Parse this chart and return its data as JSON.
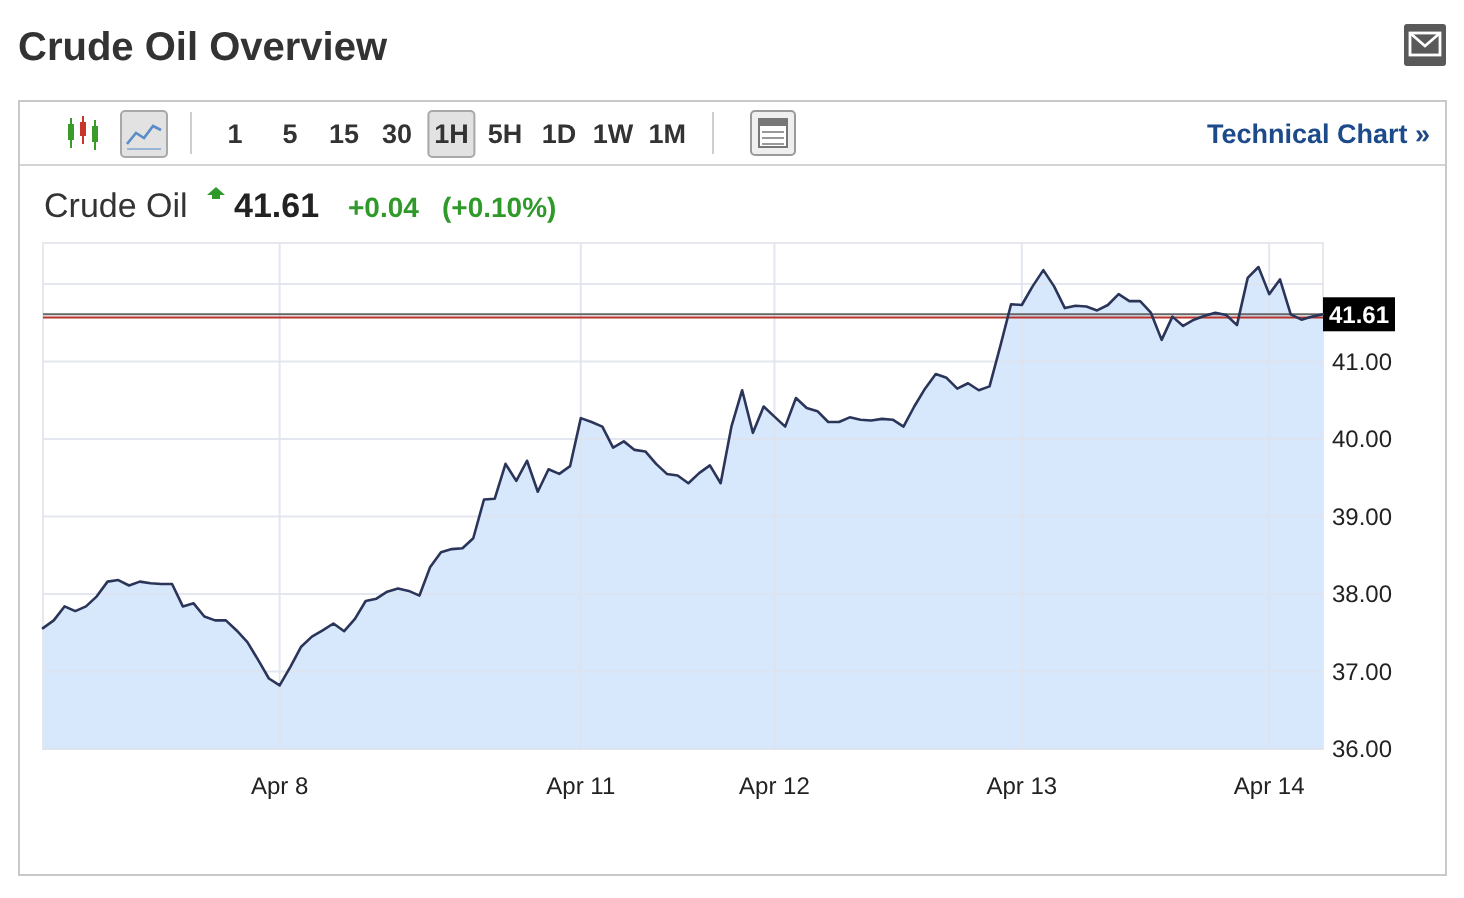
{
  "chart_data": {
    "type": "area",
    "title": "Crude Oil Overview",
    "subtitle": "Crude Oil",
    "annotations": [
      "41.61",
      "+0.04",
      "(+0.10%)",
      "1",
      "5",
      "15",
      "30",
      "1H",
      "5H",
      "1D",
      "1W",
      "1M",
      "Technical Chart »"
    ],
    "categories": [
      null,
      null,
      null,
      null,
      null,
      null,
      null,
      null,
      null,
      null,
      null,
      null,
      null,
      null,
      null,
      null,
      null,
      null,
      null,
      null,
      null,
      null,
      "Apr 8",
      null,
      null,
      null,
      null,
      null,
      null,
      null,
      null,
      null,
      null,
      null,
      null,
      null,
      null,
      null,
      null,
      null,
      null,
      null,
      null,
      null,
      null,
      null,
      null,
      null,
      null,
      null,
      "Apr 11",
      null,
      null,
      null,
      null,
      null,
      null,
      null,
      null,
      null,
      null,
      null,
      null,
      null,
      null,
      null,
      null,
      null,
      "Apr 12",
      null,
      null,
      null,
      null,
      null,
      null,
      null,
      null,
      null,
      null,
      null,
      null,
      null,
      null,
      null,
      null,
      null,
      null,
      null,
      null,
      null,
      null,
      "Apr 13",
      null,
      null,
      null,
      null,
      null,
      null,
      null,
      null,
      null,
      null,
      null,
      null,
      null,
      null,
      null,
      null,
      null,
      null,
      null,
      null,
      null,
      null,
      "Apr 14",
      null,
      null,
      null,
      null,
      null
    ],
    "values": [
      37.56,
      37.66,
      37.84,
      37.78,
      37.84,
      37.97,
      38.16,
      38.18,
      38.11,
      38.16,
      38.14,
      38.13,
      38.13,
      37.84,
      37.88,
      37.71,
      37.66,
      37.66,
      37.53,
      37.38,
      37.15,
      36.91,
      36.82,
      37.06,
      37.32,
      37.45,
      37.53,
      37.62,
      37.52,
      37.68,
      37.91,
      37.94,
      38.03,
      38.07,
      38.04,
      37.98,
      38.35,
      38.54,
      38.58,
      38.59,
      38.72,
      39.22,
      39.23,
      39.68,
      39.46,
      39.72,
      39.32,
      39.61,
      39.55,
      39.65,
      40.27,
      40.22,
      40.16,
      39.89,
      39.97,
      39.86,
      39.84,
      39.68,
      39.55,
      39.53,
      39.43,
      39.56,
      39.66,
      39.43,
      40.16,
      40.63,
      40.08,
      40.42,
      40.29,
      40.16,
      40.53,
      40.4,
      40.36,
      40.22,
      40.22,
      40.28,
      40.25,
      40.24,
      40.26,
      40.25,
      40.16,
      40.42,
      40.65,
      40.84,
      40.79,
      40.65,
      40.72,
      40.63,
      40.68,
      41.2,
      41.74,
      41.73,
      41.97,
      42.18,
      41.97,
      41.69,
      41.72,
      41.71,
      41.66,
      41.73,
      41.87,
      41.78,
      41.78,
      41.63,
      41.28,
      41.58,
      41.46,
      41.54,
      41.59,
      41.63,
      41.6,
      41.47,
      42.08,
      42.22,
      41.87,
      42.06,
      41.61,
      41.54,
      41.58,
      41.61
    ],
    "color": "#d7e8fc",
    "ylim": [
      36,
      42.53
    ],
    "yticks": [
      {
        "value": 36,
        "label": "36.00"
      },
      {
        "value": 37,
        "label": "37.00"
      },
      {
        "value": 38,
        "label": "38.00"
      },
      {
        "value": 39,
        "label": "39.00"
      },
      {
        "value": 40,
        "label": "40.00"
      },
      {
        "value": 41,
        "label": "41.00"
      },
      {
        "value": 42,
        "label": null
      }
    ],
    "grid": true,
    "ref_lines": [
      {
        "axis": "y",
        "value": 41.61,
        "label": "41.61",
        "color": "#666666"
      },
      {
        "axis": "y",
        "value": 41.57,
        "color": "#b8332a"
      }
    ]
  }
}
